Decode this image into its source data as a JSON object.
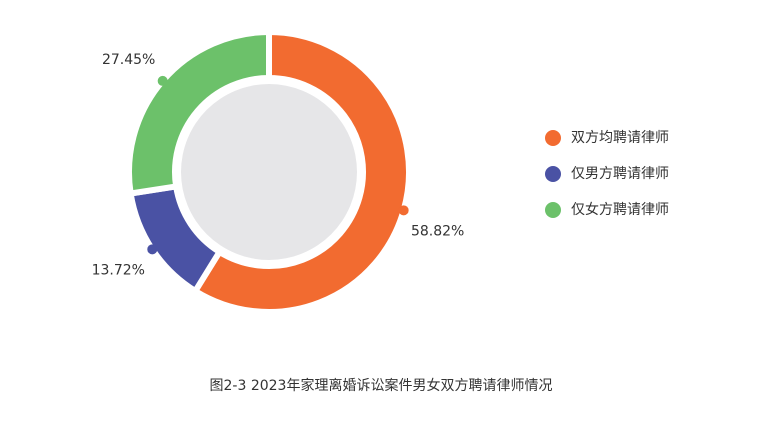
{
  "chart_data": {
    "type": "donut",
    "title": "图2-3  2023年家理离婚诉讼案件男女双方聘请律师情况",
    "categories": [
      "双方均聘请律师",
      "仅男方聘请律师",
      "仅女方聘请律师"
    ],
    "values": [
      58.82,
      13.72,
      27.45
    ],
    "value_labels": [
      "58.82%",
      "13.72%",
      "27.45%"
    ],
    "colors": [
      "#f26b30",
      "#4a52a4",
      "#6cc16a"
    ],
    "legend": "right"
  }
}
